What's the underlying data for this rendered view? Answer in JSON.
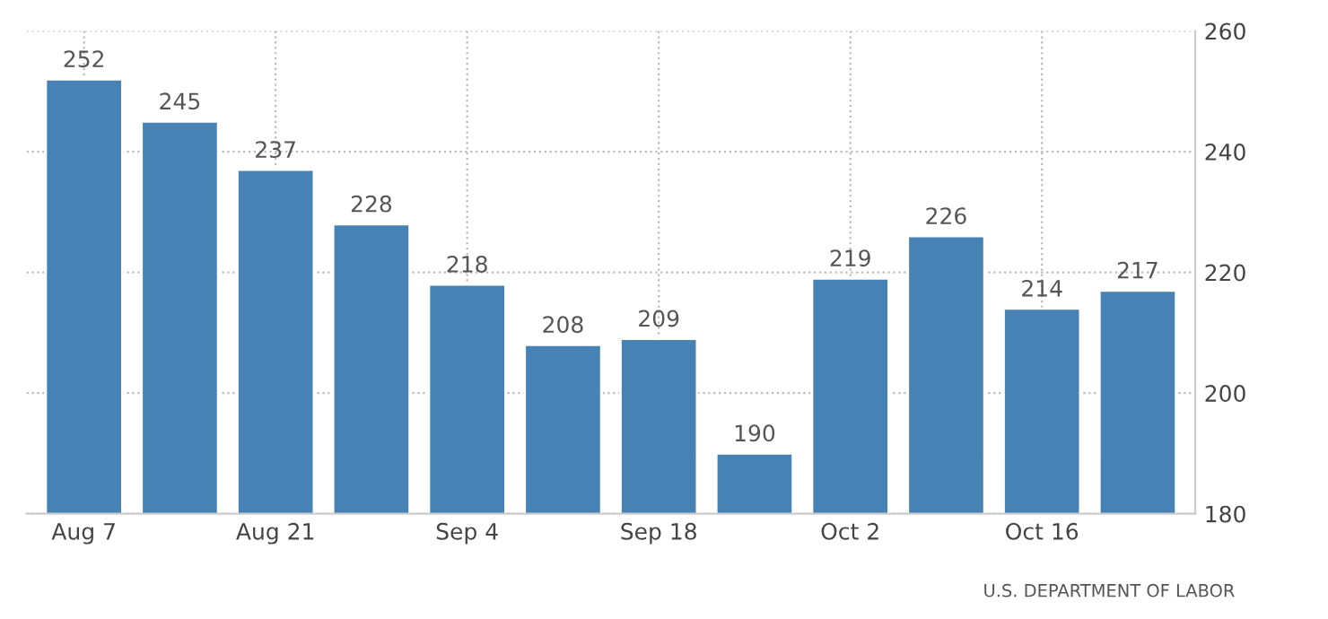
{
  "chart_data": {
    "type": "bar",
    "categories": [
      "Aug 7",
      null,
      "Aug 21",
      null,
      "Sep 4",
      null,
      "Sep 18",
      null,
      "Oct 2",
      null,
      "Oct 16",
      null
    ],
    "values": [
      252,
      245,
      237,
      228,
      218,
      208,
      209,
      190,
      219,
      226,
      214,
      217
    ],
    "color": "#4682b4",
    "ylim": [
      180,
      260
    ],
    "yticks": [
      180,
      200,
      220,
      240,
      260
    ],
    "grid": true,
    "data_labels": true,
    "annotations": [
      "U.S. DEPARTMENT OF LABOR"
    ]
  }
}
